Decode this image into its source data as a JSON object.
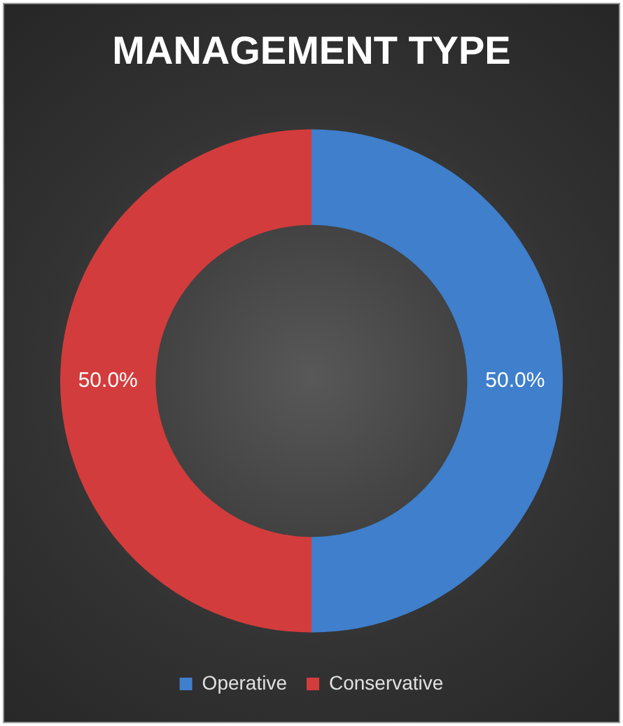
{
  "chart_data": {
    "type": "donut",
    "title": "MANAGEMENT TYPE",
    "categories": [
      "Operative",
      "Conservative"
    ],
    "values": [
      50,
      50
    ],
    "colors": [
      "#3f7fcc",
      "#d33c3c"
    ],
    "value_labels": [
      "50.0%",
      "50.0%"
    ],
    "legend": "bottom"
  }
}
